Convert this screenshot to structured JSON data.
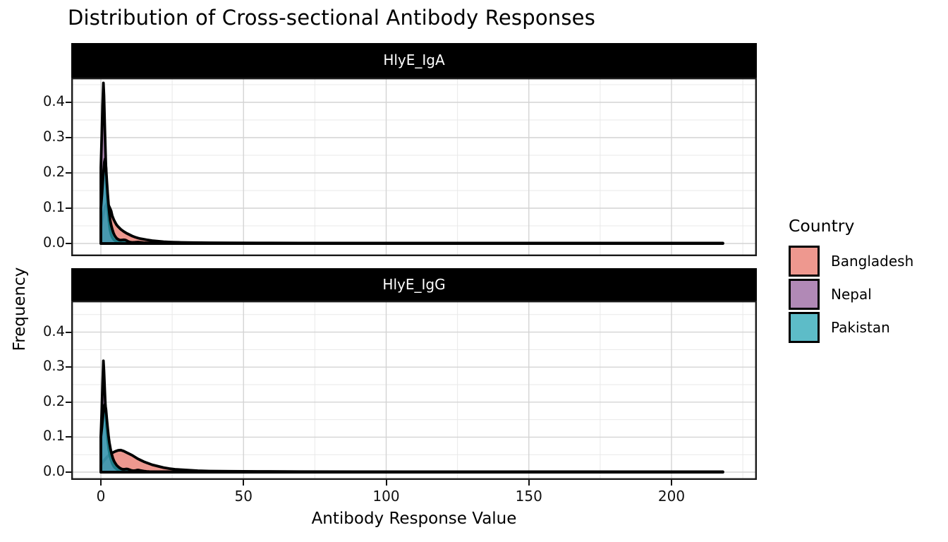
{
  "title": "Distribution of Cross-sectional Antibody Responses",
  "legend": {
    "title": "Country",
    "items": [
      {
        "label": "Bangladesh",
        "color": "#E8766A"
      },
      {
        "label": "Nepal",
        "color": "#97629E"
      },
      {
        "label": "Pakistan",
        "color": "#27A5B6"
      }
    ],
    "fill_alpha": 0.75,
    "outline_color": "#000000",
    "position": "right"
  },
  "chart_data": {
    "type": "area",
    "subtype": "density",
    "title": "Distribution of Cross-sectional Antibody Responses",
    "xlabel": "Antibody Response Value",
    "ylabel": "Frequency",
    "xlim": [
      -10.4,
      230
    ],
    "ylim": [
      0,
      0.47
    ],
    "grid": "on",
    "x_ticks": [
      0,
      50,
      100,
      150,
      200
    ],
    "x_tick_labels": [
      "0",
      "50",
      "100",
      "150",
      "200"
    ],
    "x_minor_ticks": [
      25,
      75,
      125,
      175,
      225
    ],
    "y_ticks": [
      0.0,
      0.1,
      0.2,
      0.3,
      0.4
    ],
    "y_tick_labels": [
      "0.0",
      "0.1",
      "0.2",
      "0.3",
      "0.4"
    ],
    "y_minor_ticks": [
      0.05,
      0.15,
      0.25,
      0.35,
      0.45
    ],
    "facets": [
      {
        "label": "HlyE_IgA",
        "series": [
          {
            "name": "Bangladesh",
            "points": [
              [
                0,
                0.046
              ],
              [
                0.8,
                0.08
              ],
              [
                1.5,
                0.105
              ],
              [
                2.2,
                0.115
              ],
              [
                2.8,
                0.107
              ],
              [
                3.2,
                0.1
              ],
              [
                3.6,
                0.092
              ],
              [
                4,
                0.078
              ],
              [
                4.5,
                0.068
              ],
              [
                5,
                0.06
              ],
              [
                5.5,
                0.053
              ],
              [
                6,
                0.048
              ],
              [
                7,
                0.04
              ],
              [
                8,
                0.034
              ],
              [
                9,
                0.029
              ],
              [
                10,
                0.025
              ],
              [
                11,
                0.021
              ],
              [
                12,
                0.018
              ],
              [
                13,
                0.0155
              ],
              [
                14,
                0.0135
              ],
              [
                15,
                0.012
              ],
              [
                16,
                0.0105
              ],
              [
                18,
                0.008
              ],
              [
                20,
                0.0065
              ],
              [
                22,
                0.005
              ],
              [
                25,
                0.0038
              ],
              [
                28,
                0.003
              ],
              [
                32,
                0.0024
              ],
              [
                38,
                0.002
              ],
              [
                45,
                0.0016
              ],
              [
                55,
                0.0013
              ],
              [
                70,
                0.0011
              ],
              [
                90,
                0.001
              ],
              [
                120,
                0.001
              ],
              [
                150,
                0.001
              ],
              [
                180,
                0.001
              ],
              [
                205,
                0.001
              ],
              [
                218,
                0.001
              ]
            ]
          },
          {
            "name": "Nepal",
            "points": [
              [
                0,
                0.215
              ],
              [
                0.3,
                0.3
              ],
              [
                0.6,
                0.39
              ],
              [
                0.9,
                0.455
              ],
              [
                1.1,
                0.42
              ],
              [
                1.4,
                0.32
              ],
              [
                1.7,
                0.235
              ],
              [
                2,
                0.165
              ],
              [
                2.4,
                0.105
              ],
              [
                2.8,
                0.065
              ],
              [
                3.2,
                0.04
              ],
              [
                3.6,
                0.025
              ],
              [
                4,
                0.017
              ],
              [
                4.5,
                0.011
              ],
              [
                5,
                0.008
              ],
              [
                6,
                0.0045
              ],
              [
                7,
                0.003
              ],
              [
                8,
                0.0022
              ],
              [
                10,
                0.0015
              ],
              [
                13,
                0.0012
              ],
              [
                17,
                0.001
              ],
              [
                25,
                0.0009
              ],
              [
                50,
                0.0008
              ],
              [
                100,
                0.0008
              ],
              [
                150,
                0.0008
              ],
              [
                185,
                0.0009
              ],
              [
                218,
                0.0008
              ]
            ]
          },
          {
            "name": "Pakistan",
            "points": [
              [
                0,
                0.1
              ],
              [
                0.4,
                0.14
              ],
              [
                0.8,
                0.19
              ],
              [
                1.2,
                0.23
              ],
              [
                1.5,
                0.24
              ],
              [
                1.8,
                0.215
              ],
              [
                2.1,
                0.175
              ],
              [
                2.4,
                0.14
              ],
              [
                2.7,
                0.11
              ],
              [
                3,
                0.085
              ],
              [
                3.3,
                0.065
              ],
              [
                3.6,
                0.052
              ],
              [
                4,
                0.04
              ],
              [
                4.4,
                0.03
              ],
              [
                4.8,
                0.023
              ],
              [
                5.2,
                0.018
              ],
              [
                5.6,
                0.014
              ],
              [
                6,
                0.012
              ],
              [
                6.5,
                0.01
              ],
              [
                7,
                0.0095
              ],
              [
                7.5,
                0.01
              ],
              [
                8,
                0.0105
              ],
              [
                8.5,
                0.01
              ],
              [
                9,
                0.0085
              ],
              [
                9.5,
                0.006
              ],
              [
                10,
                0.0045
              ],
              [
                10.5,
                0.0035
              ],
              [
                11,
                0.003
              ],
              [
                12,
                0.0035
              ],
              [
                13,
                0.004
              ],
              [
                14,
                0.0032
              ],
              [
                15,
                0.0022
              ],
              [
                16,
                0.0016
              ],
              [
                17,
                0.0018
              ],
              [
                18,
                0.002
              ],
              [
                19,
                0.0016
              ],
              [
                20,
                0.0012
              ],
              [
                22,
                0.001
              ],
              [
                25,
                0.0012
              ],
              [
                27,
                0.001
              ],
              [
                30,
                0.0009
              ],
              [
                40,
                0.0008
              ],
              [
                60,
                0.0008
              ],
              [
                100,
                0.0008
              ],
              [
                150,
                0.0008
              ],
              [
                218,
                0.0008
              ]
            ]
          }
        ]
      },
      {
        "label": "HlyE_IgG",
        "series": [
          {
            "name": "Bangladesh",
            "points": [
              [
                0,
                0.02
              ],
              [
                1,
                0.032
              ],
              [
                2,
                0.042
              ],
              [
                3,
                0.05
              ],
              [
                4,
                0.055
              ],
              [
                5,
                0.059
              ],
              [
                6,
                0.062
              ],
              [
                7,
                0.063
              ],
              [
                8,
                0.06
              ],
              [
                9,
                0.056
              ],
              [
                10,
                0.052
              ],
              [
                11,
                0.048
              ],
              [
                12,
                0.043
              ],
              [
                13,
                0.038
              ],
              [
                14,
                0.034
              ],
              [
                15,
                0.03
              ],
              [
                16,
                0.027
              ],
              [
                17,
                0.024
              ],
              [
                18,
                0.021
              ],
              [
                19,
                0.019
              ],
              [
                20,
                0.017
              ],
              [
                22,
                0.013
              ],
              [
                24,
                0.01
              ],
              [
                26,
                0.008
              ],
              [
                28,
                0.007
              ],
              [
                30,
                0.006
              ],
              [
                34,
                0.004
              ],
              [
                38,
                0.003
              ],
              [
                45,
                0.0025
              ],
              [
                55,
                0.002
              ],
              [
                70,
                0.0015
              ],
              [
                90,
                0.0012
              ],
              [
                110,
                0.001
              ],
              [
                140,
                0.001
              ],
              [
                170,
                0.0012
              ],
              [
                190,
                0.001
              ],
              [
                205,
                0.001
              ],
              [
                218,
                0.001
              ]
            ]
          },
          {
            "name": "Nepal",
            "points": [
              [
                0,
                0.105
              ],
              [
                0.3,
                0.17
              ],
              [
                0.6,
                0.25
              ],
              [
                0.9,
                0.318
              ],
              [
                1.1,
                0.29
              ],
              [
                1.4,
                0.225
              ],
              [
                1.7,
                0.17
              ],
              [
                2,
                0.13
              ],
              [
                2.4,
                0.092
              ],
              [
                2.8,
                0.065
              ],
              [
                3.2,
                0.047
              ],
              [
                3.6,
                0.034
              ],
              [
                4,
                0.025
              ],
              [
                4.5,
                0.017
              ],
              [
                5,
                0.012
              ],
              [
                5.5,
                0.009
              ],
              [
                6,
                0.007
              ],
              [
                7,
                0.0045
              ],
              [
                8,
                0.0032
              ],
              [
                9,
                0.0025
              ],
              [
                10,
                0.002
              ],
              [
                12,
                0.0015
              ],
              [
                15,
                0.0012
              ],
              [
                20,
                0.001
              ],
              [
                30,
                0.0009
              ],
              [
                50,
                0.0008
              ],
              [
                100,
                0.0008
              ],
              [
                150,
                0.0008
              ],
              [
                218,
                0.0008
              ]
            ]
          },
          {
            "name": "Pakistan",
            "points": [
              [
                0,
                0.1
              ],
              [
                0.4,
                0.13
              ],
              [
                0.8,
                0.165
              ],
              [
                1.2,
                0.19
              ],
              [
                1.5,
                0.195
              ],
              [
                1.8,
                0.178
              ],
              [
                2.1,
                0.15
              ],
              [
                2.4,
                0.125
              ],
              [
                2.7,
                0.102
              ],
              [
                3,
                0.084
              ],
              [
                3.4,
                0.065
              ],
              [
                3.8,
                0.051
              ],
              [
                4.2,
                0.04
              ],
              [
                4.6,
                0.032
              ],
              [
                5,
                0.026
              ],
              [
                5.5,
                0.02
              ],
              [
                6,
                0.016
              ],
              [
                6.5,
                0.0125
              ],
              [
                7,
                0.01
              ],
              [
                7.5,
                0.0085
              ],
              [
                8,
                0.008
              ],
              [
                8.5,
                0.0085
              ],
              [
                9,
                0.009
              ],
              [
                9.5,
                0.0085
              ],
              [
                10,
                0.007
              ],
              [
                10.5,
                0.0055
              ],
              [
                11,
                0.0045
              ],
              [
                11.5,
                0.004
              ],
              [
                12,
                0.0045
              ],
              [
                12.5,
                0.0055
              ],
              [
                13,
                0.006
              ],
              [
                13.5,
                0.0055
              ],
              [
                14,
                0.0045
              ],
              [
                15,
                0.003
              ],
              [
                16,
                0.002
              ],
              [
                17,
                0.0015
              ],
              [
                18,
                0.0013
              ],
              [
                20,
                0.001
              ],
              [
                23,
                0.0012
              ],
              [
                26,
                0.001
              ],
              [
                30,
                0.0009
              ],
              [
                40,
                0.0008
              ],
              [
                60,
                0.0008
              ],
              [
                100,
                0.0008
              ],
              [
                150,
                0.0008
              ],
              [
                218,
                0.0008
              ]
            ]
          }
        ]
      }
    ],
    "style": {
      "strip_bg": "#000000",
      "strip_text": "#ffffff",
      "panel_border": "#1a1a1a",
      "grid_major": "#d4d4d4",
      "grid_minor": "#e9e9e9",
      "curve_stroke": "#000000"
    }
  }
}
